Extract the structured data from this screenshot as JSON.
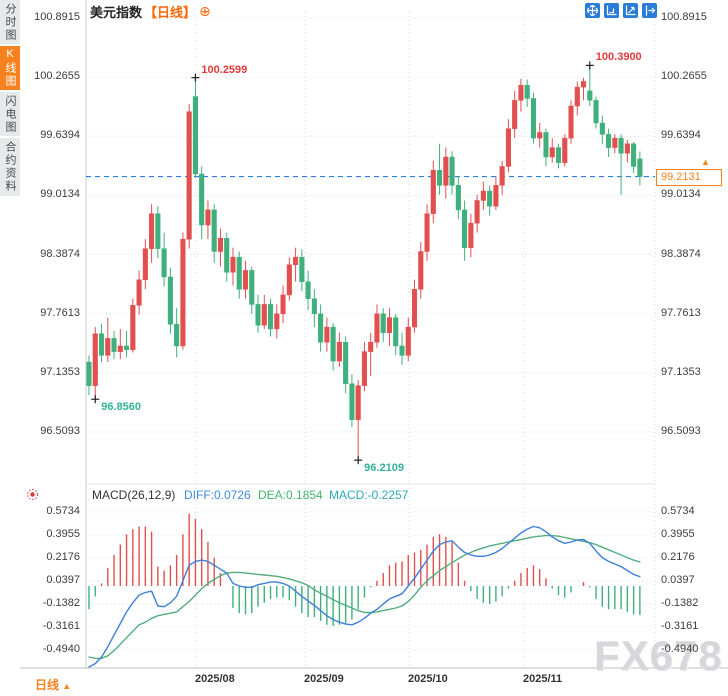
{
  "sidebar": {
    "items": [
      {
        "label": "分时图",
        "active": false
      },
      {
        "label": "K线图",
        "active": true
      },
      {
        "label": "闪电图",
        "active": false
      },
      {
        "label": "合约资料",
        "active": false
      }
    ]
  },
  "header": {
    "title": "美元指数",
    "period_tag": "【日线】",
    "zoom_icon": "⊕"
  },
  "toolbar": {
    "icons": [
      "pan-icon",
      "axis-scale-icon",
      "axis-trend-icon",
      "exit-right-icon"
    ]
  },
  "price_axis": {
    "labels": [
      "100.8915",
      "100.2655",
      "99.6394",
      "99.0134",
      "98.3874",
      "97.7613",
      "97.1353",
      "96.5093"
    ]
  },
  "current_price": {
    "value": "99.2131",
    "arrow": "▲"
  },
  "macd_panel": {
    "title": "MACD(26,12,9)",
    "diff_label": "DIFF:0.0726",
    "dea_label": "DEA:0.1854",
    "macd_label": "MACD:-0.2257",
    "axis_labels": [
      "0.5734",
      "0.3955",
      "0.2176",
      "0.0397",
      "-0.1382",
      "-0.3161",
      "-0.4940"
    ]
  },
  "x_axis": {
    "labels": [
      "2025/08",
      "2025/09",
      "2025/10",
      "2025/11"
    ]
  },
  "footer": {
    "period": "日线",
    "arrow": "▲"
  },
  "watermark": "FX678",
  "colors": {
    "up": "#e1504e",
    "down": "#3fb07d",
    "diff_line": "#3d7fd9",
    "dea_line": "#53ad7e",
    "current_line": "#2e7de0",
    "accent_orange": "#f5821f",
    "annotation_high": "#e23a3a",
    "annotation_low": "#35b29a",
    "grid": "#d9dade"
  },
  "chart_data": {
    "type": "candlestick",
    "title": "美元指数 日线",
    "ylabel": "price",
    "price_axis_values": [
      100.8915,
      100.2655,
      99.6394,
      99.0134,
      98.3874,
      97.7613,
      97.1353,
      96.5093
    ],
    "macd_axis_values": [
      0.5734,
      0.3955,
      0.2176,
      0.0397,
      -0.1382,
      -0.3161,
      -0.494
    ],
    "months": [
      "2025/08",
      "2025/09",
      "2025/10",
      "2025/11"
    ],
    "current_price": 99.2131,
    "candles": [
      [
        97.25,
        97.32,
        96.9,
        97.0
      ],
      [
        97.0,
        97.62,
        96.856,
        97.55
      ],
      [
        97.55,
        97.65,
        97.25,
        97.32
      ],
      [
        97.32,
        97.72,
        97.25,
        97.5
      ],
      [
        97.5,
        97.58,
        97.28,
        97.36
      ],
      [
        97.36,
        97.6,
        97.28,
        97.42
      ],
      [
        97.42,
        97.58,
        97.3,
        97.38
      ],
      [
        97.38,
        97.92,
        97.35,
        97.85
      ],
      [
        97.85,
        98.22,
        97.75,
        98.12
      ],
      [
        98.12,
        98.55,
        98.02,
        98.45
      ],
      [
        98.45,
        98.92,
        98.3,
        98.82
      ],
      [
        98.82,
        98.9,
        98.35,
        98.45
      ],
      [
        98.45,
        98.62,
        98.05,
        98.15
      ],
      [
        98.15,
        98.25,
        97.55,
        97.65
      ],
      [
        97.65,
        97.82,
        97.3,
        97.42
      ],
      [
        97.42,
        98.62,
        97.38,
        98.55
      ],
      [
        98.55,
        99.98,
        98.45,
        99.9
      ],
      [
        100.06,
        100.2599,
        99.2,
        99.24
      ],
      [
        99.24,
        99.32,
        98.55,
        98.7
      ],
      [
        98.7,
        98.96,
        98.55,
        98.86
      ],
      [
        98.86,
        98.92,
        98.3,
        98.42
      ],
      [
        98.42,
        98.66,
        98.26,
        98.56
      ],
      [
        98.56,
        98.62,
        98.1,
        98.2
      ],
      [
        98.2,
        98.46,
        98.06,
        98.36
      ],
      [
        98.36,
        98.42,
        97.92,
        98.02
      ],
      [
        98.02,
        98.32,
        97.92,
        98.22
      ],
      [
        98.22,
        98.26,
        97.76,
        97.86
      ],
      [
        97.86,
        97.96,
        97.56,
        97.64
      ],
      [
        97.64,
        97.96,
        97.6,
        97.86
      ],
      [
        97.86,
        97.92,
        97.52,
        97.6
      ],
      [
        97.6,
        97.86,
        97.5,
        97.76
      ],
      [
        97.76,
        98.06,
        97.66,
        97.96
      ],
      [
        97.96,
        98.36,
        97.9,
        98.28
      ],
      [
        98.28,
        98.46,
        98.1,
        98.36
      ],
      [
        98.36,
        98.44,
        98.0,
        98.1
      ],
      [
        98.1,
        98.22,
        97.8,
        97.92
      ],
      [
        97.92,
        98.02,
        97.62,
        97.76
      ],
      [
        97.76,
        97.86,
        97.36,
        97.46
      ],
      [
        97.46,
        97.72,
        97.36,
        97.62
      ],
      [
        97.62,
        97.66,
        97.16,
        97.26
      ],
      [
        97.26,
        97.56,
        97.2,
        97.46
      ],
      [
        97.46,
        97.52,
        96.92,
        97.02
      ],
      [
        97.02,
        97.12,
        96.56,
        96.64
      ],
      [
        96.64,
        97.06,
        96.2109,
        97.0
      ],
      [
        97.0,
        97.46,
        96.94,
        97.36
      ],
      [
        97.36,
        97.56,
        97.1,
        97.46
      ],
      [
        97.46,
        97.86,
        97.4,
        97.76
      ],
      [
        97.76,
        97.82,
        97.46,
        97.56
      ],
      [
        97.56,
        97.82,
        97.42,
        97.72
      ],
      [
        97.72,
        97.76,
        97.32,
        97.42
      ],
      [
        97.42,
        97.56,
        97.22,
        97.32
      ],
      [
        97.32,
        97.72,
        97.26,
        97.62
      ],
      [
        97.62,
        98.12,
        97.56,
        98.02
      ],
      [
        98.02,
        98.52,
        97.92,
        98.42
      ],
      [
        98.42,
        98.92,
        98.32,
        98.82
      ],
      [
        98.82,
        99.38,
        98.72,
        99.28
      ],
      [
        99.28,
        99.56,
        99.02,
        99.12
      ],
      [
        99.12,
        99.52,
        98.98,
        99.42
      ],
      [
        99.42,
        99.48,
        99.02,
        99.12
      ],
      [
        99.12,
        99.22,
        98.76,
        98.86
      ],
      [
        98.86,
        98.96,
        98.32,
        98.46
      ],
      [
        98.46,
        98.82,
        98.36,
        98.72
      ],
      [
        98.72,
        99.02,
        98.62,
        98.96
      ],
      [
        98.96,
        99.16,
        98.86,
        99.06
      ],
      [
        99.06,
        99.12,
        98.8,
        98.9
      ],
      [
        98.9,
        99.22,
        98.86,
        99.12
      ],
      [
        99.12,
        99.38,
        99.02,
        99.32
      ],
      [
        99.32,
        99.82,
        99.26,
        99.72
      ],
      [
        99.72,
        100.12,
        99.62,
        100.02
      ],
      [
        100.02,
        100.25,
        99.9,
        100.18
      ],
      [
        100.18,
        100.24,
        99.95,
        100.04
      ],
      [
        100.04,
        100.1,
        99.56,
        99.62
      ],
      [
        99.62,
        99.78,
        99.52,
        99.68
      ],
      [
        99.68,
        99.72,
        99.32,
        99.42
      ],
      [
        99.42,
        99.62,
        99.36,
        99.52
      ],
      [
        99.52,
        99.56,
        99.3,
        99.36
      ],
      [
        99.36,
        99.66,
        99.32,
        99.62
      ],
      [
        99.62,
        100.02,
        99.56,
        99.96
      ],
      [
        99.96,
        100.22,
        99.86,
        100.16
      ],
      [
        100.16,
        100.26,
        100.02,
        100.22
      ],
      [
        100.12,
        100.39,
        99.96,
        100.02
      ],
      [
        100.02,
        100.06,
        99.72,
        99.78
      ],
      [
        99.78,
        99.86,
        99.56,
        99.66
      ],
      [
        99.66,
        99.72,
        99.42,
        99.52
      ],
      [
        99.52,
        99.66,
        99.46,
        99.62
      ],
      [
        99.62,
        99.66,
        99.02,
        99.46
      ],
      [
        99.46,
        99.6,
        99.36,
        99.56
      ],
      [
        99.56,
        99.58,
        99.25,
        99.32
      ],
      [
        99.4,
        99.48,
        99.12,
        99.2131
      ]
    ],
    "macd": {
      "parameters": [
        26,
        12,
        9
      ],
      "diff": [
        -0.64,
        -0.6,
        -0.55,
        -0.47,
        -0.38,
        -0.29,
        -0.2,
        -0.13,
        -0.07,
        -0.05,
        -0.04,
        -0.155,
        -0.16,
        -0.13,
        -0.08,
        0.04,
        0.16,
        0.19,
        0.2,
        0.19,
        0.16,
        0.13,
        0.1,
        0.02,
        0.0,
        -0.01,
        -0.01,
        0.01,
        0.02,
        0.03,
        0.03,
        0.02,
        0.0,
        -0.04,
        -0.08,
        -0.115,
        -0.15,
        -0.19,
        -0.23,
        -0.26,
        -0.28,
        -0.295,
        -0.3,
        -0.28,
        -0.25,
        -0.21,
        -0.18,
        -0.14,
        -0.1,
        -0.08,
        -0.06,
        0.0,
        0.06,
        0.13,
        0.2,
        0.27,
        0.32,
        0.34,
        0.35,
        0.3,
        0.26,
        0.24,
        0.23,
        0.23,
        0.24,
        0.26,
        0.29,
        0.33,
        0.37,
        0.41,
        0.44,
        0.46,
        0.45,
        0.42,
        0.38,
        0.35,
        0.33,
        0.34,
        0.355,
        0.36,
        0.33,
        0.27,
        0.22,
        0.19,
        0.17,
        0.15,
        0.12,
        0.09,
        0.0726
      ],
      "dea": [
        -0.55,
        -0.56,
        -0.56,
        -0.54,
        -0.5,
        -0.45,
        -0.4,
        -0.35,
        -0.3,
        -0.28,
        -0.25,
        -0.23,
        -0.22,
        -0.21,
        -0.2,
        -0.16,
        -0.12,
        -0.07,
        -0.02,
        0.02,
        0.05,
        0.08,
        0.1,
        0.105,
        0.105,
        0.1,
        0.095,
        0.09,
        0.085,
        0.08,
        0.075,
        0.065,
        0.055,
        0.04,
        0.025,
        0.005,
        -0.03,
        -0.055,
        -0.08,
        -0.105,
        -0.13,
        -0.15,
        -0.17,
        -0.19,
        -0.205,
        -0.205,
        -0.2,
        -0.19,
        -0.18,
        -0.17,
        -0.155,
        -0.12,
        -0.07,
        -0.01,
        0.04,
        0.08,
        0.12,
        0.15,
        0.18,
        0.21,
        0.24,
        0.26,
        0.28,
        0.295,
        0.31,
        0.32,
        0.33,
        0.34,
        0.35,
        0.36,
        0.37,
        0.38,
        0.385,
        0.39,
        0.39,
        0.385,
        0.375,
        0.365,
        0.355,
        0.345,
        0.335,
        0.32,
        0.3,
        0.28,
        0.26,
        0.24,
        0.22,
        0.2,
        0.1854
      ],
      "histogram_formula": "2*(diff-dea)",
      "latest": {
        "diff": 0.0726,
        "dea": 0.1854,
        "macd": -0.2257
      }
    },
    "markers": [
      {
        "index": 1,
        "price": 96.856,
        "side": "low",
        "label": "96.8560"
      },
      {
        "index": 17,
        "price": 100.2599,
        "side": "high",
        "label": "100.2599"
      },
      {
        "index": 43,
        "price": 96.2109,
        "side": "low",
        "label": "96.2109"
      },
      {
        "index": 80,
        "price": 100.39,
        "side": "high",
        "label": "100.3900"
      }
    ]
  }
}
